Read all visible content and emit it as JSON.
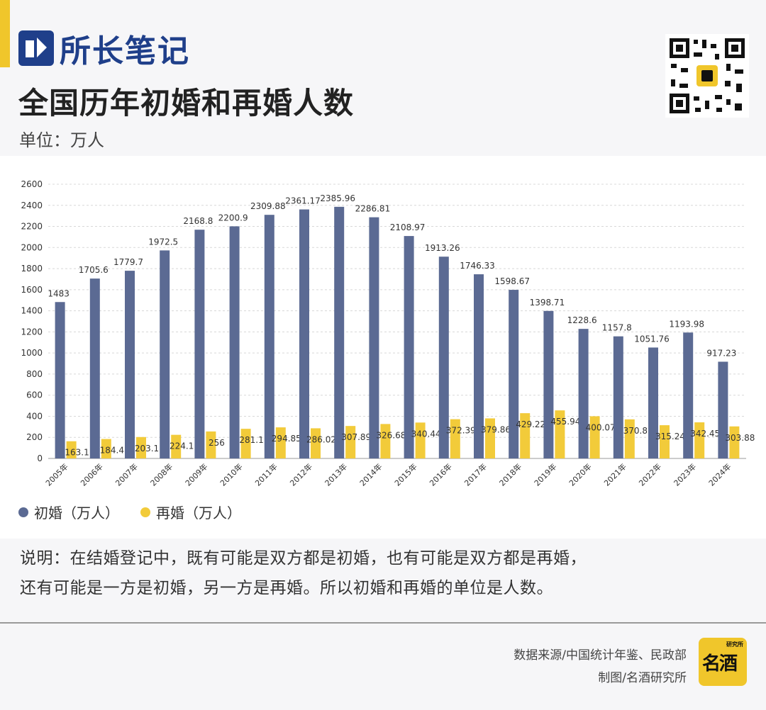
{
  "header": {
    "brand_name": "所长笔记",
    "title": "全国历年初婚和再婚人数",
    "unit": "单位：万人"
  },
  "colors": {
    "first_marriage": "#5b6a93",
    "remarriage": "#f2cb3a",
    "accent": "#f0c62b",
    "brand": "#1f3f8a",
    "grid": "#d8d8d8"
  },
  "chart_data": {
    "type": "bar",
    "title": "全国历年初婚和再婚人数",
    "ylabel": "单位：万人",
    "ylim": [
      0,
      2600
    ],
    "yticks": [
      0,
      200,
      400,
      600,
      800,
      1000,
      1200,
      1400,
      1600,
      1800,
      2000,
      2200,
      2400,
      2600
    ],
    "grid": true,
    "legend": "bottom-left",
    "categories": [
      "2005年",
      "2006年",
      "2007年",
      "2008年",
      "2009年",
      "2010年",
      "2011年",
      "2012年",
      "2013年",
      "2014年",
      "2015年",
      "2016年",
      "2017年",
      "2018年",
      "2019年",
      "2020年",
      "2021年",
      "2022年",
      "2023年",
      "2024年"
    ],
    "series": [
      {
        "name": "初婚（万人）",
        "values": [
          1483,
          1705.6,
          1779.7,
          1972.5,
          2168.8,
          2200.9,
          2309.88,
          2361.17,
          2385.96,
          2286.81,
          2108.97,
          1913.26,
          1746.33,
          1598.67,
          1398.71,
          1228.6,
          1157.8,
          1051.76,
          1193.98,
          917.23
        ]
      },
      {
        "name": "再婚（万人）",
        "values": [
          163.1,
          184.4,
          203.1,
          224.1,
          256,
          281.1,
          294.85,
          286.02,
          307.89,
          326.68,
          340.44,
          372.39,
          379.86,
          429.22,
          455.94,
          400.07,
          370.8,
          315.24,
          342.45,
          303.88
        ]
      }
    ]
  },
  "note": {
    "line1": "说明：在结婚登记中，既有可能是双方都是初婚，也有可能是双方都是再婚，",
    "line2": "还有可能是一方是初婚，另一方是再婚。所以初婚和再婚的单位是人数。"
  },
  "footer": {
    "source": "数据来源/中国统计年鉴、民政部",
    "credit": "制图/名酒研究所",
    "logo_small_text": "研究所",
    "logo_main_text": "名酒"
  }
}
